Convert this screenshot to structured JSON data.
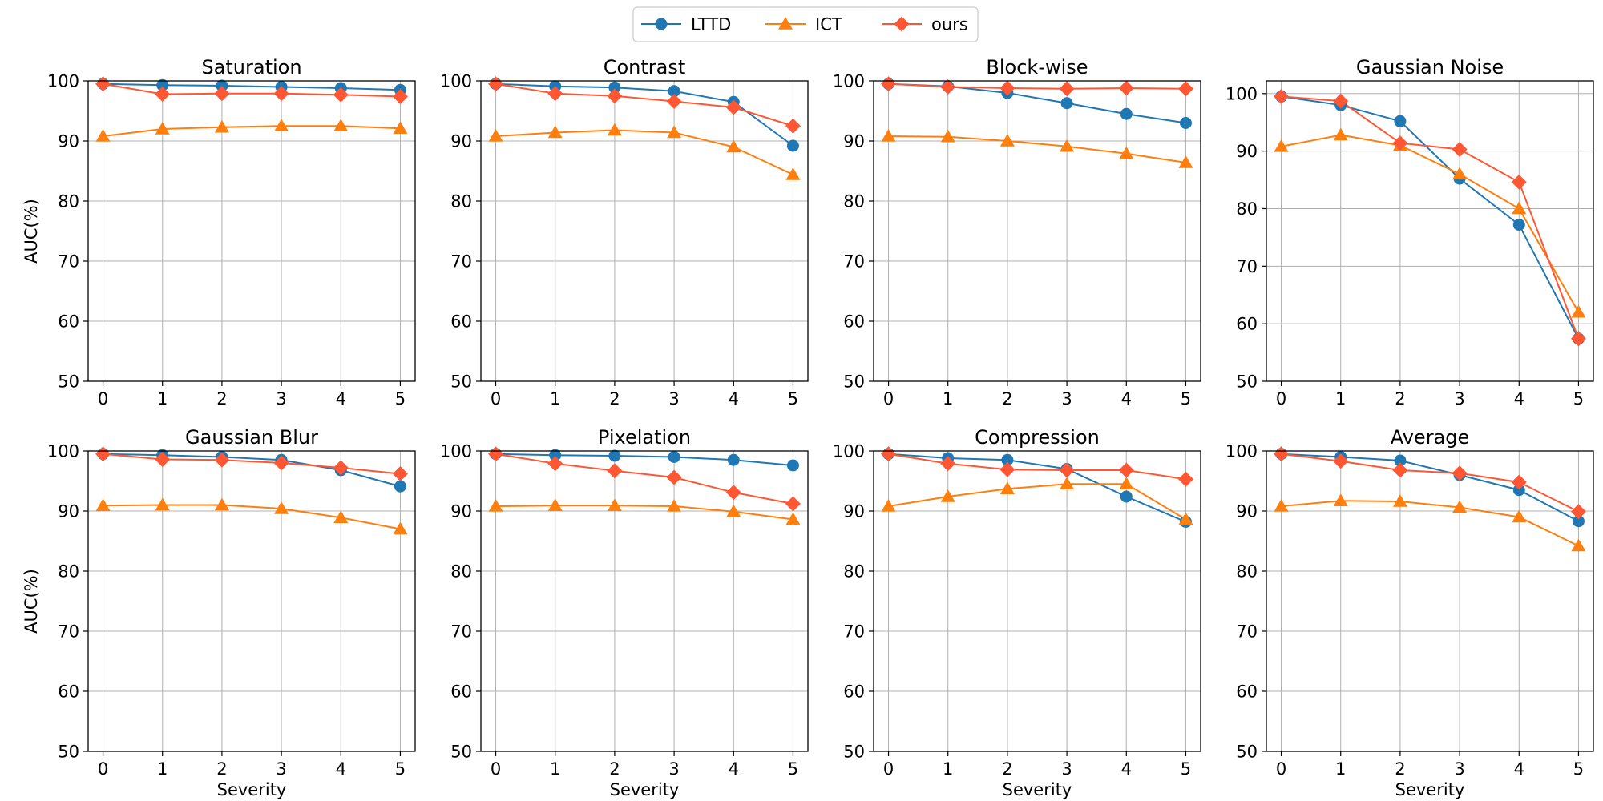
{
  "colors": {
    "LTTD": "#1f77b4",
    "ICT": "#ff7f0e",
    "ours": "#ff5733",
    "grid": "#b0b0b0",
    "axis": "#000000"
  },
  "legend": {
    "placement": "top-center",
    "entries": [
      "LTTD",
      "ICT",
      "ours"
    ],
    "markers": [
      "circle",
      "triangle",
      "diamond"
    ]
  },
  "chart_data": [
    {
      "type": "line",
      "title": "Saturation",
      "xlabel": "",
      "ylabel": "AUC(%)",
      "x": [
        0,
        1,
        2,
        3,
        4,
        5
      ],
      "ylim": [
        50,
        100
      ],
      "yticks": [
        50,
        60,
        70,
        80,
        90,
        100
      ],
      "grid": true,
      "series": [
        {
          "name": "LTTD",
          "values": [
            99.5,
            99.3,
            99.2,
            99.0,
            98.8,
            98.5
          ]
        },
        {
          "name": "ICT",
          "values": [
            90.8,
            92.0,
            92.3,
            92.5,
            92.5,
            92.1
          ]
        },
        {
          "name": "ours",
          "values": [
            99.5,
            97.8,
            97.9,
            97.9,
            97.7,
            97.4
          ]
        }
      ]
    },
    {
      "type": "line",
      "title": "Contrast",
      "xlabel": "",
      "ylabel": "",
      "x": [
        0,
        1,
        2,
        3,
        4,
        5
      ],
      "ylim": [
        50,
        100
      ],
      "yticks": [
        50,
        60,
        70,
        80,
        90,
        100
      ],
      "grid": true,
      "series": [
        {
          "name": "LTTD",
          "values": [
            99.5,
            99.1,
            98.9,
            98.3,
            96.5,
            89.2
          ]
        },
        {
          "name": "ICT",
          "values": [
            90.8,
            91.4,
            91.8,
            91.4,
            89.0,
            84.4
          ]
        },
        {
          "name": "ours",
          "values": [
            99.5,
            97.9,
            97.5,
            96.6,
            95.6,
            92.5
          ]
        }
      ]
    },
    {
      "type": "line",
      "title": "Block-wise",
      "xlabel": "",
      "ylabel": "",
      "x": [
        0,
        1,
        2,
        3,
        4,
        5
      ],
      "ylim": [
        50,
        100
      ],
      "yticks": [
        50,
        60,
        70,
        80,
        90,
        100
      ],
      "grid": true,
      "series": [
        {
          "name": "LTTD",
          "values": [
            99.5,
            99.1,
            98.0,
            96.3,
            94.5,
            93.0
          ]
        },
        {
          "name": "ICT",
          "values": [
            90.8,
            90.7,
            90.0,
            89.1,
            87.9,
            86.4
          ]
        },
        {
          "name": "ours",
          "values": [
            99.5,
            99.0,
            98.8,
            98.7,
            98.8,
            98.7
          ]
        }
      ]
    },
    {
      "type": "line",
      "title": "Gaussian Noise",
      "xlabel": "",
      "ylabel": "",
      "x": [
        0,
        1,
        2,
        3,
        4,
        5
      ],
      "ylim": [
        50,
        100
      ],
      "yticks": [
        50,
        60,
        70,
        80,
        90,
        100
      ],
      "grid": true,
      "series": [
        {
          "name": "LTTD",
          "values": [
            99.5,
            98.0,
            95.2,
            85.2,
            77.2,
            57.4
          ]
        },
        {
          "name": "ICT",
          "values": [
            90.8,
            92.8,
            91.0,
            86.0,
            80.0,
            62.0
          ]
        },
        {
          "name": "ours",
          "values": [
            99.5,
            98.7,
            91.4,
            90.3,
            84.6,
            57.4
          ]
        }
      ]
    },
    {
      "type": "line",
      "title": "Gaussian Blur",
      "xlabel": "Severity",
      "ylabel": "AUC(%)",
      "x": [
        0,
        1,
        2,
        3,
        4,
        5
      ],
      "ylim": [
        50,
        100
      ],
      "yticks": [
        50,
        60,
        70,
        80,
        90,
        100
      ],
      "grid": true,
      "series": [
        {
          "name": "LTTD",
          "values": [
            99.5,
            99.3,
            99.0,
            98.5,
            96.8,
            94.1
          ]
        },
        {
          "name": "ICT",
          "values": [
            90.9,
            91.0,
            91.0,
            90.4,
            88.9,
            87.0
          ]
        },
        {
          "name": "ours",
          "values": [
            99.5,
            98.6,
            98.5,
            98.0,
            97.2,
            96.2
          ]
        }
      ]
    },
    {
      "type": "line",
      "title": "Pixelation",
      "xlabel": "Severity",
      "ylabel": "",
      "x": [
        0,
        1,
        2,
        3,
        4,
        5
      ],
      "ylim": [
        50,
        100
      ],
      "yticks": [
        50,
        60,
        70,
        80,
        90,
        100
      ],
      "grid": true,
      "series": [
        {
          "name": "LTTD",
          "values": [
            99.5,
            99.3,
            99.2,
            99.0,
            98.5,
            97.6
          ]
        },
        {
          "name": "ICT",
          "values": [
            90.8,
            90.9,
            90.9,
            90.8,
            89.9,
            88.6
          ]
        },
        {
          "name": "ours",
          "values": [
            99.5,
            97.9,
            96.7,
            95.6,
            93.1,
            91.2
          ]
        }
      ]
    },
    {
      "type": "line",
      "title": "Compression",
      "xlabel": "Severity",
      "ylabel": "",
      "x": [
        0,
        1,
        2,
        3,
        4,
        5
      ],
      "ylim": [
        50,
        100
      ],
      "yticks": [
        50,
        60,
        70,
        80,
        90,
        100
      ],
      "grid": true,
      "series": [
        {
          "name": "LTTD",
          "values": [
            99.5,
            98.8,
            98.5,
            97.0,
            92.4,
            88.2
          ]
        },
        {
          "name": "ICT",
          "values": [
            90.8,
            92.4,
            93.7,
            94.5,
            94.5,
            88.6
          ]
        },
        {
          "name": "ours",
          "values": [
            99.5,
            97.9,
            96.9,
            96.8,
            96.8,
            95.3
          ]
        }
      ]
    },
    {
      "type": "line",
      "title": "Average",
      "xlabel": "Severity",
      "ylabel": "",
      "x": [
        0,
        1,
        2,
        3,
        4,
        5
      ],
      "ylim": [
        50,
        100
      ],
      "yticks": [
        50,
        60,
        70,
        80,
        90,
        100
      ],
      "grid": true,
      "series": [
        {
          "name": "LTTD",
          "values": [
            99.5,
            99.0,
            98.4,
            96.0,
            93.5,
            88.3
          ]
        },
        {
          "name": "ICT",
          "values": [
            90.8,
            91.7,
            91.6,
            90.6,
            89.0,
            84.2
          ]
        },
        {
          "name": "ours",
          "values": [
            99.5,
            98.3,
            96.8,
            96.3,
            94.8,
            89.9
          ]
        }
      ]
    }
  ]
}
